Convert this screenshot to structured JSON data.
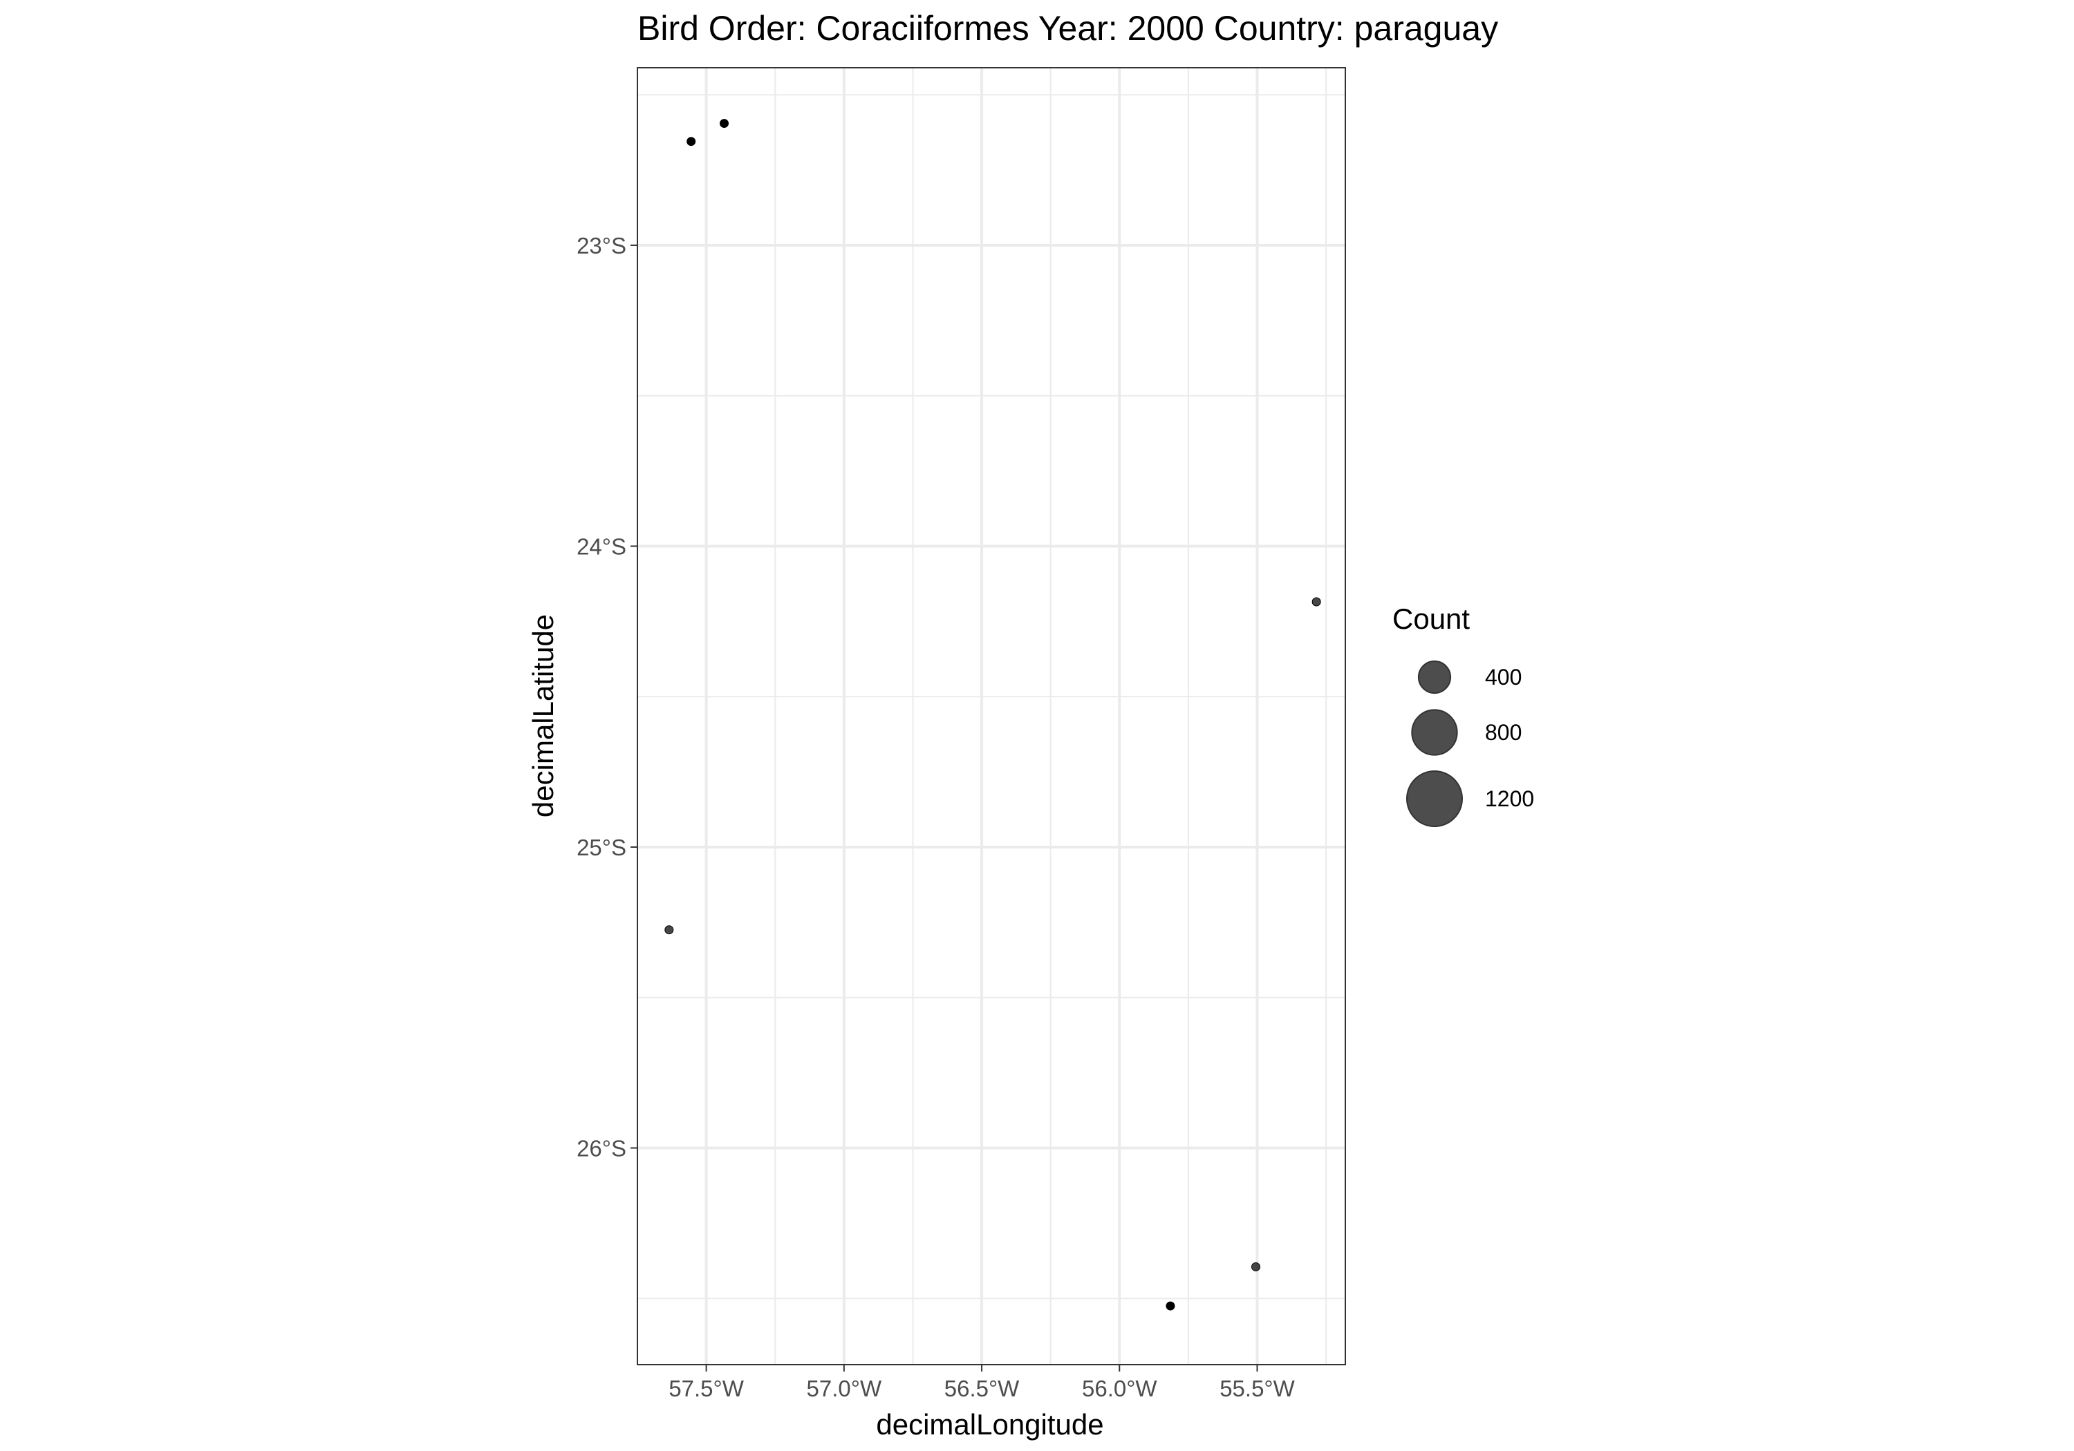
{
  "chart_data": {
    "type": "scatter",
    "title": "Bird Order: Coraciiformes Year: 2000 Country: paraguay",
    "xlabel": "decimalLongitude",
    "ylabel": "decimalLatitude",
    "xlim": [
      -57.75,
      -55.18
    ],
    "ylim": [
      -26.72,
      -22.41
    ],
    "x_ticks": [
      {
        "value": -57.5,
        "label": "57.5°W"
      },
      {
        "value": -57.0,
        "label": "57.0°W"
      },
      {
        "value": -56.5,
        "label": "56.5°W"
      },
      {
        "value": -56.0,
        "label": "56.0°W"
      },
      {
        "value": -55.5,
        "label": "55.5°W"
      }
    ],
    "y_ticks": [
      {
        "value": -23,
        "label": "23°S"
      },
      {
        "value": -24,
        "label": "24°S"
      },
      {
        "value": -25,
        "label": "25°S"
      },
      {
        "value": -26,
        "label": "26°S"
      }
    ],
    "grid": true,
    "points": [
      {
        "lon": -57.555,
        "lat": -22.655,
        "count": 15,
        "opacity": 1.0
      },
      {
        "lon": -57.435,
        "lat": -22.595,
        "count": 12,
        "opacity": 1.0
      },
      {
        "lon": -55.285,
        "lat": -24.185,
        "count": 8,
        "opacity": 0.72
      },
      {
        "lon": -57.635,
        "lat": -25.275,
        "count": 10,
        "opacity": 0.72
      },
      {
        "lon": -55.505,
        "lat": -26.395,
        "count": 8,
        "opacity": 0.72
      },
      {
        "lon": -55.815,
        "lat": -26.525,
        "count": 10,
        "opacity": 1.0
      }
    ],
    "legend": {
      "title": "Count",
      "position": "right",
      "entries": [
        {
          "value": 400,
          "label": "400"
        },
        {
          "value": 800,
          "label": "800"
        },
        {
          "value": 1200,
          "label": "1200"
        }
      ]
    },
    "colors": {
      "point": "#000000",
      "legend_fill": "#4d4d4d",
      "grid": "#ebebeb",
      "panel_border": "#333333",
      "axis_text": "#4d4d4d",
      "title_text": "#000000"
    }
  }
}
